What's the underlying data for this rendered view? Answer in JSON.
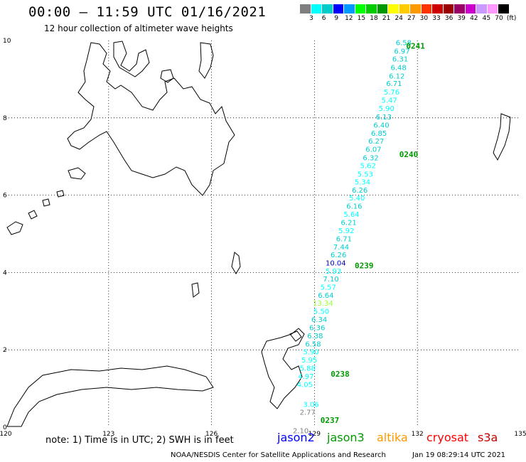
{
  "header": {
    "title": "00:00 – 11:59 UTC 01/16/2021",
    "subtitle": "12 hour collection of altimeter wave heights"
  },
  "colorbar": {
    "colors": [
      "#7f7f7f",
      "#00ffff",
      "#00cccc",
      "#0000ff",
      "#0099ff",
      "#00ff00",
      "#00cc00",
      "#009900",
      "#ffff00",
      "#ffcc00",
      "#ff9900",
      "#ff3300",
      "#cc0000",
      "#990000",
      "#990066",
      "#cc00cc",
      "#cc99ff",
      "#ff99ff",
      "#000000"
    ],
    "labels": [
      "3",
      "6",
      "9",
      "12",
      "15",
      "18",
      "21",
      "24",
      "27",
      "30",
      "33",
      "36",
      "39",
      "42",
      "45",
      "70",
      "(ft)"
    ]
  },
  "map": {
    "lon_ticks": [
      "120",
      "123",
      "126",
      "129",
      "132",
      "135"
    ],
    "lat_ticks": [
      "10",
      "8",
      "6",
      "4",
      "2",
      "0"
    ],
    "lon_range": [
      120,
      135
    ],
    "lat_range": [
      0,
      10
    ],
    "grid": true
  },
  "track": {
    "passes": [
      {
        "label": "0241",
        "lon": 131.3,
        "lat": 9.86
      },
      {
        "label": "0240",
        "lon": 131.1,
        "lat": 7.06
      },
      {
        "label": "0239",
        "lon": 129.8,
        "lat": 4.18
      },
      {
        "label": "0238",
        "lon": 129.1,
        "lat": 1.38
      },
      {
        "label": "0237",
        "lon": 128.8,
        "lat": 0.18
      }
    ],
    "points": [
      {
        "v": "6.58",
        "lon": 131.6,
        "lat": 9.88,
        "color": "#00cccc"
      },
      {
        "v": "6.97",
        "lon": 131.55,
        "lat": 9.66,
        "color": "#00cccc"
      },
      {
        "v": "6.31",
        "lon": 131.5,
        "lat": 9.46,
        "color": "#00cccc"
      },
      {
        "v": "6.48",
        "lon": 131.45,
        "lat": 9.24,
        "color": "#00cccc"
      },
      {
        "v": "6.12",
        "lon": 131.4,
        "lat": 9.02,
        "color": "#00cccc"
      },
      {
        "v": "6.71",
        "lon": 131.32,
        "lat": 8.82,
        "color": "#00cccc"
      },
      {
        "v": "5.76",
        "lon": 131.25,
        "lat": 8.6,
        "color": "#00ffff"
      },
      {
        "v": "5.47",
        "lon": 131.18,
        "lat": 8.39,
        "color": "#00ffff"
      },
      {
        "v": "5.90",
        "lon": 131.1,
        "lat": 8.18,
        "color": "#00ffff"
      },
      {
        "v": "6.13",
        "lon": 131.02,
        "lat": 7.96,
        "color": "#00cccc"
      },
      {
        "v": "6.40",
        "lon": 130.95,
        "lat": 7.75,
        "color": "#00cccc"
      },
      {
        "v": "6.85",
        "lon": 130.88,
        "lat": 7.54,
        "color": "#00cccc"
      },
      {
        "v": "6.27",
        "lon": 130.8,
        "lat": 7.33,
        "color": "#00cccc"
      },
      {
        "v": "6.07",
        "lon": 130.72,
        "lat": 7.12,
        "color": "#00cccc"
      },
      {
        "v": "6.32",
        "lon": 130.64,
        "lat": 6.9,
        "color": "#00cccc"
      },
      {
        "v": "5.62",
        "lon": 130.56,
        "lat": 6.7,
        "color": "#00ffff"
      },
      {
        "v": "5.53",
        "lon": 130.48,
        "lat": 6.48,
        "color": "#00ffff"
      },
      {
        "v": "5.34",
        "lon": 130.4,
        "lat": 6.28,
        "color": "#00ffff"
      },
      {
        "v": "6.26",
        "lon": 130.32,
        "lat": 6.07,
        "color": "#00cccc"
      },
      {
        "v": "5.40",
        "lon": 130.24,
        "lat": 5.86,
        "color": "#00ffff"
      },
      {
        "v": "6.16",
        "lon": 130.16,
        "lat": 5.65,
        "color": "#00cccc"
      },
      {
        "v": "5.64",
        "lon": 130.08,
        "lat": 5.44,
        "color": "#00ffff"
      },
      {
        "v": "6.21",
        "lon": 130.0,
        "lat": 5.23,
        "color": "#00cccc"
      },
      {
        "v": "5.92",
        "lon": 129.93,
        "lat": 5.02,
        "color": "#00ffff"
      },
      {
        "v": "6.71",
        "lon": 129.86,
        "lat": 4.81,
        "color": "#00cccc"
      },
      {
        "v": "7.44",
        "lon": 129.78,
        "lat": 4.6,
        "color": "#00cccc"
      },
      {
        "v": "6.26",
        "lon": 129.7,
        "lat": 4.39,
        "color": "#00cccc"
      },
      {
        "v": "10.04",
        "lon": 129.62,
        "lat": 4.18,
        "color": "#0000cc"
      },
      {
        "v": "5.93",
        "lon": 129.55,
        "lat": 3.97,
        "color": "#00ffff"
      },
      {
        "v": "7.10",
        "lon": 129.48,
        "lat": 3.77,
        "color": "#00cccc"
      },
      {
        "v": "5.57",
        "lon": 129.4,
        "lat": 3.56,
        "color": "#00ffff"
      },
      {
        "v": "6.64",
        "lon": 129.33,
        "lat": 3.35,
        "color": "#00cccc"
      },
      {
        "v": "13.34",
        "lon": 129.25,
        "lat": 3.14,
        "color": "#99ff33"
      },
      {
        "v": "5.50",
        "lon": 129.2,
        "lat": 2.93,
        "color": "#00ffff"
      },
      {
        "v": "6.34",
        "lon": 129.14,
        "lat": 2.72,
        "color": "#00cccc"
      },
      {
        "v": "6.36",
        "lon": 129.08,
        "lat": 2.51,
        "color": "#00cccc"
      },
      {
        "v": "6.38",
        "lon": 129.02,
        "lat": 2.3,
        "color": "#00cccc"
      },
      {
        "v": "6.58",
        "lon": 128.96,
        "lat": 2.09,
        "color": "#00cccc"
      },
      {
        "v": "5.90",
        "lon": 128.9,
        "lat": 1.88,
        "color": "#00ffff"
      },
      {
        "v": "5.95",
        "lon": 128.85,
        "lat": 1.67,
        "color": "#00ffff"
      },
      {
        "v": "5.88",
        "lon": 128.8,
        "lat": 1.46,
        "color": "#00ffff"
      },
      {
        "v": "4.97",
        "lon": 128.75,
        "lat": 1.25,
        "color": "#00ffff"
      },
      {
        "v": "4.05",
        "lon": 128.72,
        "lat": 1.04,
        "color": "#00ffff"
      },
      {
        "v": "3.06",
        "lon": 128.9,
        "lat": 0.52,
        "color": "#00ffff"
      },
      {
        "v": "2.77",
        "lon": 128.8,
        "lat": 0.32,
        "color": "#7f7f7f"
      },
      {
        "v": "2.10",
        "lon": 128.6,
        "lat": -0.16,
        "color": "#7f7f7f"
      }
    ]
  },
  "note": "note: 1) Time is in UTC; 2) SWH is in feet",
  "legend": [
    {
      "name": "jason2",
      "color": "#0000ff"
    },
    {
      "name": "jason3",
      "color": "#009900"
    },
    {
      "name": "altika",
      "color": "#ff9900"
    },
    {
      "name": "cryosat",
      "color": "#ff0000"
    },
    {
      "name": "s3a",
      "color": "#cc0000"
    }
  ],
  "footer": {
    "left": "NOAA/NESDIS Center for Satellite Applications and Research",
    "right": "Jan 19 08:29:14 UTC 2021"
  }
}
